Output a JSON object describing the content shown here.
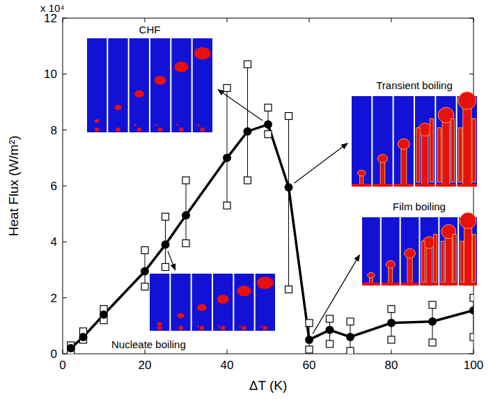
{
  "chart_data": {
    "type": "line",
    "xlabel": "ΔT (K)",
    "ylabel": "Heat Flux  (W/m²)",
    "y_multiplier": "x 10⁴",
    "annotations": [
      "CHF",
      "Transient boiling",
      "Film boiling",
      "Nucleate boiling"
    ],
    "x": [
      2,
      5,
      10,
      20,
      25,
      30,
      40,
      45,
      50,
      55,
      60,
      65,
      70,
      80,
      90,
      100
    ],
    "series": [
      {
        "color": "#000000",
        "marker": "circle",
        "line_style": "solid",
        "values": [
          0.2,
          0.6,
          1.4,
          2.95,
          3.9,
          4.95,
          7.0,
          7.95,
          8.2,
          5.95,
          0.5,
          0.85,
          0.6,
          1.1,
          1.15,
          1.55
        ],
        "min": [
          0.1,
          0.5,
          1.2,
          2.4,
          3.1,
          3.95,
          5.3,
          6.2,
          7.85,
          2.3,
          0.15,
          0.35,
          0.1,
          0.5,
          0.4,
          0.6
        ],
        "max": [
          0.3,
          0.8,
          1.6,
          3.7,
          4.9,
          6.2,
          9.5,
          10.35,
          8.8,
          8.5,
          1.1,
          1.25,
          1.15,
          1.6,
          1.75,
          2.0
        ]
      }
    ],
    "xlim": [
      0,
      100
    ],
    "xticks": [
      0,
      20,
      40,
      60,
      80,
      100
    ],
    "ylim": [
      0,
      12
    ],
    "yticks": [
      0,
      2,
      4,
      6,
      8,
      10,
      12
    ],
    "grid": false
  }
}
